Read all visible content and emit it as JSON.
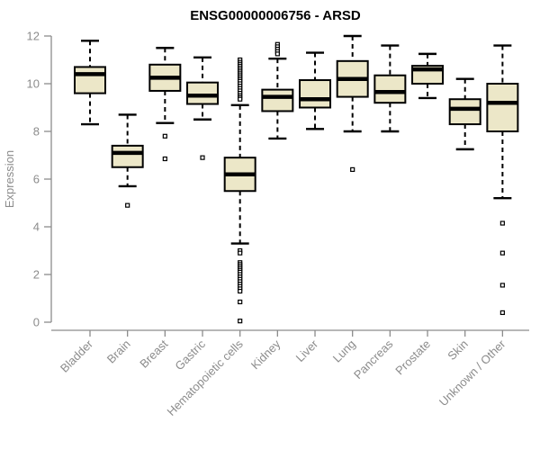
{
  "chart_data": {
    "type": "boxplot",
    "title": "ENSG00000006756 - ARSD",
    "xlabel": "",
    "ylabel": "Expression",
    "ylim": [
      0,
      12
    ],
    "yticks": [
      0,
      2,
      4,
      6,
      8,
      10,
      12
    ],
    "grid": false,
    "legend": "none",
    "categories": [
      "Bladder",
      "Brain",
      "Breast",
      "Gastric",
      "Hematopoietic cells",
      "Kidney",
      "Liver",
      "Lung",
      "Pancreas",
      "Prostate",
      "Skin",
      "Unknown / Other"
    ],
    "boxes": [
      {
        "category": "Bladder",
        "slug": "bladder",
        "whisker_low": 8.3,
        "q1": 9.6,
        "median": 10.4,
        "q3": 10.7,
        "whisker_high": 11.8,
        "outliers": []
      },
      {
        "category": "Brain",
        "slug": "brain",
        "whisker_low": 5.7,
        "q1": 6.5,
        "median": 7.1,
        "q3": 7.4,
        "whisker_high": 8.7,
        "outliers": [
          4.9
        ]
      },
      {
        "category": "Breast",
        "slug": "breast",
        "whisker_low": 8.35,
        "q1": 9.7,
        "median": 10.25,
        "q3": 10.8,
        "whisker_high": 11.5,
        "outliers": [
          7.8,
          6.85
        ]
      },
      {
        "category": "Gastric",
        "slug": "gastric",
        "whisker_low": 8.5,
        "q1": 9.15,
        "median": 9.5,
        "q3": 10.05,
        "whisker_high": 11.1,
        "outliers": [
          6.9
        ]
      },
      {
        "category": "Hematopoietic cells",
        "slug": "hematopoietic-cells",
        "whisker_low": 3.3,
        "q1": 5.5,
        "median": 6.2,
        "q3": 6.9,
        "whisker_high": 9.1,
        "outliers": [
          11.0,
          10.9,
          10.82,
          10.74,
          10.66,
          10.58,
          10.5,
          10.42,
          10.34,
          10.26,
          10.18,
          10.1,
          10.0,
          9.9,
          9.8,
          9.7,
          9.6,
          9.5,
          9.42,
          9.35,
          3.0,
          2.9,
          2.5,
          2.42,
          2.34,
          2.26,
          2.18,
          2.1,
          2.0,
          1.9,
          1.8,
          1.7,
          1.6,
          1.5,
          1.4,
          1.3,
          0.85,
          0.05
        ]
      },
      {
        "category": "Kidney",
        "slug": "kidney",
        "whisker_low": 7.7,
        "q1": 8.85,
        "median": 9.45,
        "q3": 9.75,
        "whisker_high": 11.05,
        "outliers": [
          11.65,
          11.55,
          11.45,
          11.35,
          11.25
        ]
      },
      {
        "category": "Liver",
        "slug": "liver",
        "whisker_low": 8.1,
        "q1": 9.0,
        "median": 9.35,
        "q3": 10.15,
        "whisker_high": 11.3,
        "outliers": []
      },
      {
        "category": "Lung",
        "slug": "lung",
        "whisker_low": 8.0,
        "q1": 9.45,
        "median": 10.2,
        "q3": 10.95,
        "whisker_high": 12.0,
        "outliers": [
          6.4
        ]
      },
      {
        "category": "Pancreas",
        "slug": "pancreas",
        "whisker_low": 8.0,
        "q1": 9.2,
        "median": 9.65,
        "q3": 10.35,
        "whisker_high": 11.6,
        "outliers": []
      },
      {
        "category": "Prostate",
        "slug": "prostate",
        "whisker_low": 9.4,
        "q1": 10.0,
        "median": 10.6,
        "q3": 10.75,
        "whisker_high": 11.25,
        "outliers": []
      },
      {
        "category": "Skin",
        "slug": "skin",
        "whisker_low": 7.25,
        "q1": 8.3,
        "median": 8.95,
        "q3": 9.35,
        "whisker_high": 10.2,
        "outliers": []
      },
      {
        "category": "Unknown / Other",
        "slug": "unknown-other",
        "whisker_low": 5.2,
        "q1": 8.0,
        "median": 9.2,
        "q3": 10.0,
        "whisker_high": 11.6,
        "outliers": [
          4.15,
          2.9,
          1.55,
          0.4
        ]
      }
    ],
    "colors": {
      "box_fill": "#ECE7C8",
      "box_border": "#000000",
      "median": "#000000",
      "whisker": "#000000",
      "outlier_stroke": "#000000",
      "outlier_fill": "#ffffff",
      "axis_line": "#8c8c8c",
      "tick_label": "#8c8c8c",
      "title": "#000000",
      "background": "#ffffff"
    }
  }
}
